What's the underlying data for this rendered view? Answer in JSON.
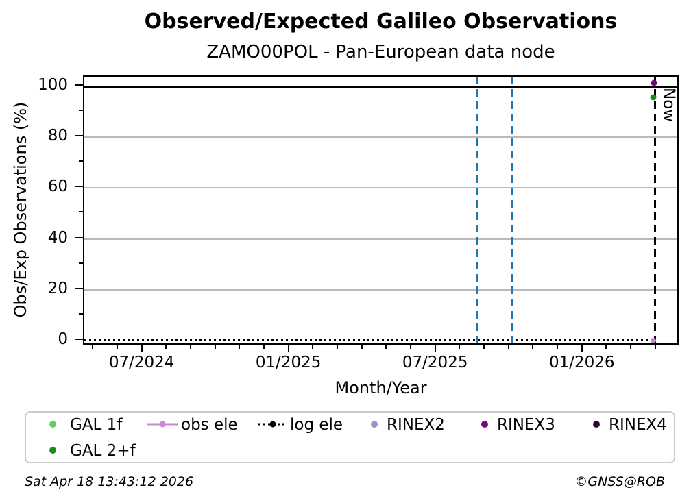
{
  "chart_data": {
    "type": "scatter",
    "title": "Observed/Expected Galileo Observations",
    "subtitle": "ZAMO00POL - Pan-European data node",
    "xlabel": "Month/Year",
    "ylabel": "Obs/Exp Observations (%)",
    "xlim": [
      2024.3,
      2026.33
    ],
    "ylim": [
      -2.2,
      103.8
    ],
    "x_major_ticks": [
      {
        "value": 2024.5,
        "label": "07/2024"
      },
      {
        "value": 2025.0,
        "label": "01/2025"
      },
      {
        "value": 2025.5,
        "label": "07/2025"
      },
      {
        "value": 2026.0,
        "label": "01/2026"
      }
    ],
    "x_minor_tick_interval_months": 1,
    "y_major_ticks": [
      {
        "value": 0,
        "label": "0"
      },
      {
        "value": 20,
        "label": "20"
      },
      {
        "value": 40,
        "label": "40"
      },
      {
        "value": 60,
        "label": "60"
      },
      {
        "value": 80,
        "label": "80"
      },
      {
        "value": 100,
        "label": "100"
      }
    ],
    "y_minor_ticks": [
      10,
      30,
      50,
      70,
      90
    ],
    "gridlines_y": [
      20,
      40,
      60,
      80
    ],
    "grid": "horizontal-only",
    "reference_line": {
      "y": 100,
      "color": "#000000",
      "style": "solid"
    },
    "baseline_series": {
      "name": "log ele",
      "y": 0,
      "x_start": 2024.3,
      "x_end": 2026.245,
      "color": "#000000",
      "style": "dotted"
    },
    "vlines": [
      {
        "x": 2025.638,
        "color": "#1f77b4",
        "style": "dashed",
        "label": ""
      },
      {
        "x": 2025.758,
        "color": "#1f77b4",
        "style": "dashed",
        "label": ""
      },
      {
        "x": 2026.245,
        "color": "#000000",
        "style": "dashed",
        "label": "Now"
      }
    ],
    "points": [
      {
        "series": "RINEX3",
        "x": 2026.242,
        "y": 101.5,
        "color": "#6e0b74",
        "size": 9
      },
      {
        "series": "GAL 2+f",
        "x": 2026.238,
        "y": 95.7,
        "color": "#1f8b1f",
        "size": 9
      },
      {
        "series": "obs ele",
        "x": 2026.238,
        "y": 0,
        "color": "#c987d4",
        "size": 8
      }
    ],
    "legend": [
      {
        "label": "GAL 1f",
        "marker": "dot",
        "color": "#5fd35f"
      },
      {
        "label": "GAL 2+f",
        "marker": "dot",
        "color": "#1f8b1f"
      },
      {
        "label": "obs ele",
        "marker": "line-dot",
        "color": "#c987d4"
      },
      {
        "label": "log ele",
        "marker": "dotted-line-dot",
        "color": "#000000"
      },
      {
        "label": "RINEX2",
        "marker": "dot",
        "color": "#9a94cc"
      },
      {
        "label": "RINEX3",
        "marker": "dot",
        "color": "#740c7c"
      },
      {
        "label": "RINEX4",
        "marker": "dot",
        "color": "#2a0b30"
      }
    ],
    "legend_position": "below-axes",
    "footer": {
      "left": "Sat Apr 18 13:43:12 2026",
      "right": "©GNSS@ROB"
    }
  }
}
